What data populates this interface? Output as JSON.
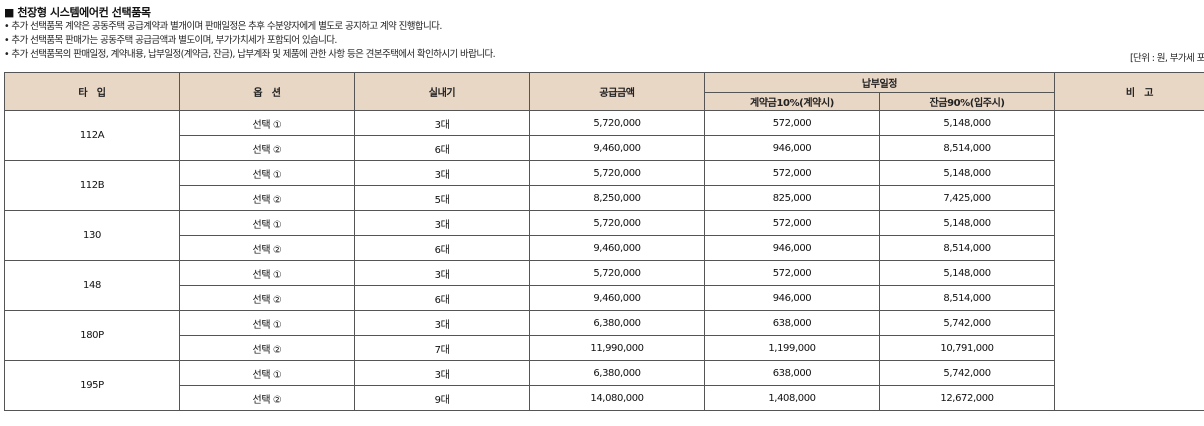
{
  "section_title": "■ 천장형 시스템에어컨 선택품목",
  "notes": [
    "• 추가 선택품목 계약은 공동주택 공급계약과 별개이며 판매일정은 추후 수분양자에게 별도로 공지하고 계약 진행합니다.",
    "• 추가 선택품목 판매가는 공동주택 공급금액과 별도이며, 부가가치세가 포함되어 있습니다.",
    "• 추가 선택품목의 판매일정, 계약내용, 납부일정(계약금, 잔금), 납부계좌 및 제품에 관한 사항 등은 견본주택에서 확인하시기 바랍니다."
  ],
  "unit_note": "[단위 : 원, 부가세 포함]",
  "table": {
    "headers": {
      "type": "타　입",
      "option": "옵　션",
      "indoor": "실내기",
      "supply": "공급금액",
      "schedule": "납부일정",
      "deposit": "계약금10%(계약시)",
      "balance": "잔금90%(입주시)",
      "remarks": "비　고"
    },
    "groups": [
      {
        "type": "112A",
        "rows": [
          {
            "option": "선택 ①",
            "indoor": "3대",
            "supply": "5,720,000",
            "deposit": "572,000",
            "balance": "5,148,000"
          },
          {
            "option": "선택 ②",
            "indoor": "6대",
            "supply": "9,460,000",
            "deposit": "946,000",
            "balance": "8,514,000"
          }
        ]
      },
      {
        "type": "112B",
        "rows": [
          {
            "option": "선택 ①",
            "indoor": "3대",
            "supply": "5,720,000",
            "deposit": "572,000",
            "balance": "5,148,000"
          },
          {
            "option": "선택 ②",
            "indoor": "5대",
            "supply": "8,250,000",
            "deposit": "825,000",
            "balance": "7,425,000"
          }
        ]
      },
      {
        "type": "130",
        "rows": [
          {
            "option": "선택 ①",
            "indoor": "3대",
            "supply": "5,720,000",
            "deposit": "572,000",
            "balance": "5,148,000"
          },
          {
            "option": "선택 ②",
            "indoor": "6대",
            "supply": "9,460,000",
            "deposit": "946,000",
            "balance": "8,514,000"
          }
        ]
      },
      {
        "type": "148",
        "rows": [
          {
            "option": "선택 ①",
            "indoor": "3대",
            "supply": "5,720,000",
            "deposit": "572,000",
            "balance": "5,148,000"
          },
          {
            "option": "선택 ②",
            "indoor": "6대",
            "supply": "9,460,000",
            "deposit": "946,000",
            "balance": "8,514,000"
          }
        ]
      },
      {
        "type": "180P",
        "rows": [
          {
            "option": "선택 ①",
            "indoor": "3대",
            "supply": "6,380,000",
            "deposit": "638,000",
            "balance": "5,742,000"
          },
          {
            "option": "선택 ②",
            "indoor": "7대",
            "supply": "11,990,000",
            "deposit": "1,199,000",
            "balance": "10,791,000"
          }
        ]
      },
      {
        "type": "195P",
        "rows": [
          {
            "option": "선택 ①",
            "indoor": "3대",
            "supply": "6,380,000",
            "deposit": "638,000",
            "balance": "5,742,000"
          },
          {
            "option": "선택 ②",
            "indoor": "9대",
            "supply": "14,080,000",
            "deposit": "1,408,000",
            "balance": "12,672,000"
          }
        ]
      }
    ],
    "header_bg": "#e9d7c6",
    "border_color": "#555555"
  }
}
